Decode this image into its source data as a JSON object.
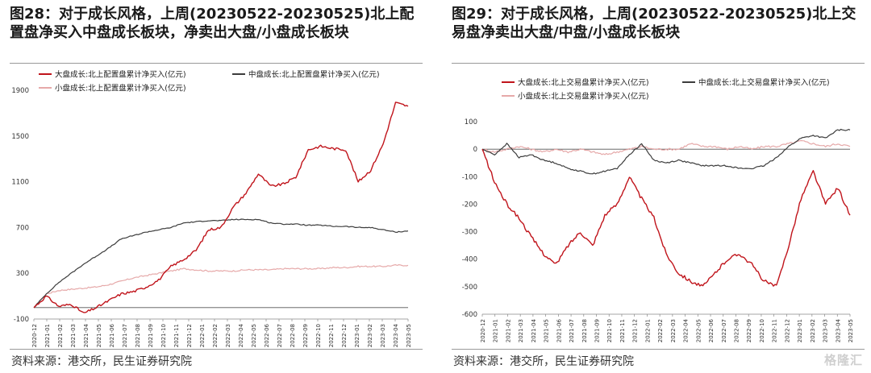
{
  "colors": {
    "large": "#c0141b",
    "mid": "#3c3c3c",
    "small": "#e6a9a9"
  },
  "panels": [
    {
      "title": "图28：对于成长风格，上周(20230522-20230525)北上配置盘净买入中盘成长板块，净卖出大盘/小盘成长板块",
      "source": "资料来源：港交所，民生证券研究院"
    },
    {
      "title": "图29：对于成长风格，上周(20230522-20230525)北上交易盘净卖出大盘/中盘/小盘成长板块",
      "source": "资料来源：港交所，民生证券研究院",
      "watermark": "格隆汇"
    }
  ],
  "chart_data": [
    {
      "type": "line",
      "title": "",
      "legend_placement": "top",
      "ylim": [
        -100,
        1900
      ],
      "yticks": [
        -100,
        300,
        700,
        1100,
        1500,
        1900
      ],
      "grid": false,
      "x_tick_labels": [
        "2020-12",
        "2021-01",
        "2021-02",
        "2021-03",
        "2021-04",
        "2021-05",
        "2021-06",
        "2021-07",
        "2021-08",
        "2021-09",
        "2021-10",
        "2021-11",
        "2021-12",
        "2022-01",
        "2022-02",
        "2022-03",
        "2022-04",
        "2022-05",
        "2022-06",
        "2022-07",
        "2022-08",
        "2022-09",
        "2022-10",
        "2022-11",
        "2022-12",
        "2023-01",
        "2023-02",
        "2023-03",
        "2023-04",
        "2023-05"
      ],
      "series": [
        {
          "name": "大盘成长:北上配置盘累计净买入(亿元)",
          "key": "large",
          "values": [
            0,
            100,
            10,
            30,
            -50,
            0,
            60,
            120,
            140,
            180,
            240,
            360,
            420,
            500,
            680,
            700,
            880,
            1000,
            1170,
            1060,
            1080,
            1140,
            1380,
            1410,
            1390,
            1380,
            1100,
            1200,
            1430,
            1790,
            1760
          ]
        },
        {
          "name": "中盘成长:北上配置盘累计净买入(亿元)",
          "key": "mid",
          "values": [
            0,
            120,
            220,
            300,
            380,
            450,
            520,
            600,
            630,
            660,
            680,
            700,
            740,
            750,
            760,
            760,
            770,
            770,
            770,
            740,
            730,
            730,
            720,
            720,
            710,
            710,
            700,
            700,
            680,
            660,
            670
          ]
        },
        {
          "name": "小盘成长:北上配置盘累计净买入(亿元)",
          "key": "small",
          "values": [
            0,
            120,
            150,
            160,
            170,
            180,
            200,
            230,
            260,
            280,
            300,
            320,
            340,
            330,
            320,
            320,
            320,
            330,
            330,
            330,
            340,
            340,
            340,
            340,
            350,
            350,
            360,
            360,
            360,
            370,
            370
          ]
        }
      ]
    },
    {
      "type": "line",
      "title": "",
      "legend_placement": "top",
      "ylim": [
        -600,
        150
      ],
      "yticks": [
        -600,
        -500,
        -400,
        -300,
        -200,
        -100,
        0,
        100
      ],
      "grid": false,
      "x_tick_labels": [
        "2020-12",
        "2021-01",
        "2021-02",
        "2021-03",
        "2021-04",
        "2021-05",
        "2021-06",
        "2021-07",
        "2021-08",
        "2021-09",
        "2021-10",
        "2021-11",
        "2021-12",
        "2022-01",
        "2022-02",
        "2022-03",
        "2022-04",
        "2022-05",
        "2022-06",
        "2022-07",
        "2022-08",
        "2022-09",
        "2022-10",
        "2022-11",
        "2022-12",
        "2023-01",
        "2023-02",
        "2023-03",
        "2023-04",
        "2023-05"
      ],
      "series": [
        {
          "name": "大盘成长:北上交易盘累计净买入(亿元)",
          "key": "large",
          "values": [
            0,
            -120,
            -200,
            -250,
            -320,
            -380,
            -420,
            -350,
            -300,
            -350,
            -240,
            -200,
            -100,
            -180,
            -250,
            -380,
            -450,
            -480,
            -500,
            -450,
            -400,
            -380,
            -420,
            -480,
            -500,
            -350,
            -180,
            -80,
            -200,
            -140,
            -240
          ]
        },
        {
          "name": "中盘成长:北上交易盘累计净买入(亿元)",
          "key": "mid",
          "values": [
            0,
            -20,
            20,
            -30,
            -20,
            -40,
            -50,
            -70,
            -80,
            -90,
            -80,
            -70,
            -20,
            20,
            -40,
            -50,
            -40,
            -50,
            -60,
            -60,
            -60,
            -70,
            -70,
            -60,
            -30,
            10,
            40,
            50,
            40,
            70,
            70
          ]
        },
        {
          "name": "小盘成长:北上交易盘累计净买入(亿元)",
          "key": "small",
          "values": [
            0,
            -10,
            0,
            10,
            0,
            -10,
            0,
            -10,
            0,
            -10,
            -20,
            -10,
            0,
            10,
            0,
            0,
            0,
            20,
            10,
            10,
            0,
            10,
            0,
            10,
            10,
            20,
            30,
            20,
            10,
            20,
            10
          ]
        }
      ]
    }
  ]
}
